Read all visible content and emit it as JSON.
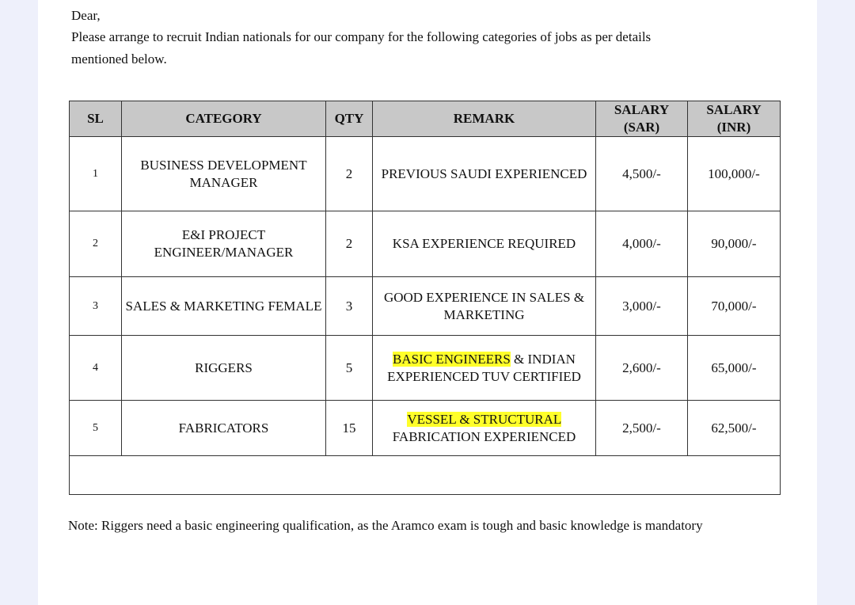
{
  "letter": {
    "salutation": "Dear,",
    "body": "Please arrange to recruit Indian nationals for our company for the following categories of jobs as per details",
    "body_cont": "mentioned below."
  },
  "table": {
    "headers": {
      "sl": "SL",
      "category": "CATEGORY",
      "qty": "QTY",
      "remark": "REMARK",
      "salary_sar": "SALARY (SAR)",
      "salary_inr": "SALARY (INR)"
    },
    "rows": [
      {
        "sl": "1",
        "category": "BUSINESS DEVELOPMENT MANAGER",
        "qty": "2",
        "remark": "PREVIOUS SAUDI EXPERIENCED",
        "remark_hl": "",
        "sar": "4,500/-",
        "inr": "100,000/-"
      },
      {
        "sl": "2",
        "category": "E&I PROJECT ENGINEER/MANAGER",
        "qty": "2",
        "remark": "KSA EXPERIENCE REQUIRED",
        "remark_hl": "",
        "sar": "4,000/-",
        "inr": "90,000/-"
      },
      {
        "sl": "3",
        "category": "SALES & MARKETING FEMALE",
        "qty": "3",
        "remark": "GOOD EXPERIENCE IN SALES & MARKETING",
        "remark_hl": "",
        "sar": "3,000/-",
        "inr": "70,000/-"
      },
      {
        "sl": "4",
        "category": "RIGGERS",
        "qty": "5",
        "remark_hl": "BASIC ENGINEERS",
        "remark": " & INDIAN EXPERIENCED TUV CERTIFIED",
        "sar": "2,600/-",
        "inr": "65,000/-"
      },
      {
        "sl": "5",
        "category": "FABRICATORS",
        "qty": "15",
        "remark_hl": "VESSEL & STRUCTURAL",
        "remark": " FABRICATION EXPERIENCED",
        "sar": "2,500/-",
        "inr": "62,500/-"
      }
    ]
  },
  "note": "Note: Riggers need a basic engineering qualification, as the Aramco exam is tough and basic knowledge is mandatory",
  "colors": {
    "highlight": "#ffff2a",
    "header_bg": "#c8c8c8",
    "outer_bg": "#eef0fb"
  }
}
